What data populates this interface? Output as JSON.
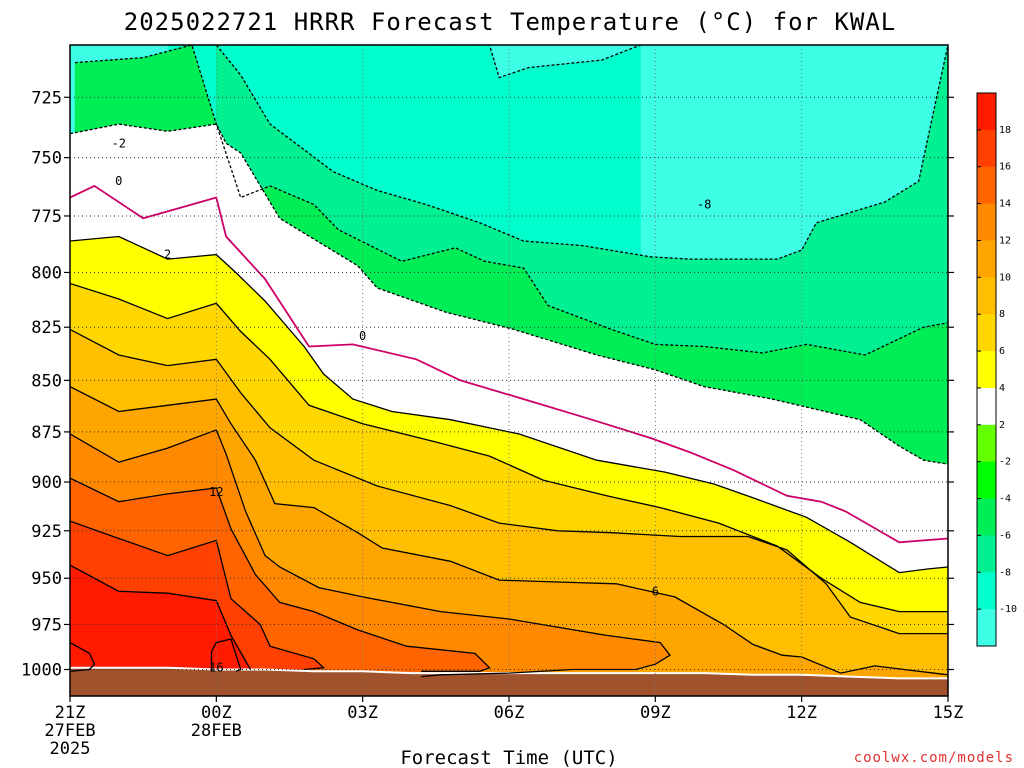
{
  "chart_data": {
    "type": "contour",
    "title": "2025022721 HRRR Forecast Temperature (°C) for KWAL",
    "xlabel": "Forecast Time (UTC)",
    "ylabel": "",
    "x_ticks": [
      {
        "label": "21Z",
        "sub": [
          "27FEB",
          "2025"
        ],
        "hour": 0
      },
      {
        "label": "00Z",
        "sub": [
          "28FEB"
        ],
        "hour": 3
      },
      {
        "label": "03Z",
        "sub": [],
        "hour": 6
      },
      {
        "label": "06Z",
        "sub": [],
        "hour": 9
      },
      {
        "label": "09Z",
        "sub": [],
        "hour": 12
      },
      {
        "label": "12Z",
        "sub": [],
        "hour": 15
      },
      {
        "label": "15Z",
        "sub": [],
        "hour": 18
      }
    ],
    "y_ticks": [
      725,
      750,
      775,
      800,
      825,
      850,
      875,
      900,
      925,
      950,
      975,
      1000
    ],
    "xlim_hours": [
      0,
      18
    ],
    "ylim_hPa": [
      1015,
      704
    ],
    "surface_pressure_hPa": [
      999,
      999,
      999,
      1000,
      1000,
      1001,
      1001,
      1002,
      1002,
      1002,
      1002,
      1002,
      1002,
      1002,
      1003,
      1003,
      1004,
      1005,
      1005
    ],
    "contour_interval": 2,
    "colorbar": {
      "labels": [
        18,
        16,
        14,
        12,
        10,
        8,
        6,
        4,
        2,
        -2,
        -4,
        -6,
        -8,
        -10
      ],
      "colors": [
        "#ff1a00",
        "#ff4000",
        "#ff6400",
        "#ff8a00",
        "#ffa500",
        "#ffbf00",
        "#ffd700",
        "#ffff00",
        "#ffffff",
        "#64ff00",
        "#00ff00",
        "#00ee55",
        "#00f092",
        "#00ffcc",
        "#3cffe6"
      ]
    },
    "isotherms": [
      {
        "value": -10,
        "points": [
          [
            2.0,
            704
          ],
          [
            8.6,
            704
          ],
          [
            8.8,
            717
          ],
          [
            9.4,
            713
          ],
          [
            10.9,
            710
          ],
          [
            11.7,
            704
          ]
        ]
      },
      {
        "value": -8,
        "points": [
          [
            3.0,
            704
          ],
          [
            3.5,
            716
          ],
          [
            4.1,
            736
          ],
          [
            5.4,
            756
          ],
          [
            6.3,
            764
          ],
          [
            7.3,
            770
          ],
          [
            8.4,
            778
          ],
          [
            9.3,
            786
          ],
          [
            10.5,
            788
          ],
          [
            11.9,
            793
          ],
          [
            12.7,
            794
          ],
          [
            14.5,
            794
          ],
          [
            15.0,
            790
          ],
          [
            15.3,
            778
          ],
          [
            16.7,
            769
          ],
          [
            17.4,
            760
          ],
          [
            17.8,
            722
          ],
          [
            18,
            704
          ]
        ]
      },
      {
        "value": -6,
        "points": [
          [
            0.1,
            711
          ],
          [
            1.5,
            709
          ],
          [
            2.5,
            704
          ],
          [
            3.0,
            736
          ],
          [
            3.5,
            767
          ],
          [
            4.1,
            762
          ],
          [
            5.0,
            770
          ],
          [
            5.5,
            781
          ],
          [
            6.8,
            795
          ],
          [
            7.9,
            789
          ],
          [
            8.5,
            795
          ],
          [
            9.3,
            798
          ],
          [
            9.8,
            815
          ],
          [
            11.1,
            826
          ],
          [
            12.0,
            833
          ],
          [
            13.0,
            834
          ],
          [
            14.2,
            837
          ],
          [
            15.1,
            833
          ],
          [
            16.3,
            838
          ],
          [
            17.5,
            825
          ],
          [
            18,
            823
          ]
        ]
      },
      {
        "value": -4,
        "points": [
          [
            0,
            740
          ],
          [
            1.0,
            736
          ],
          [
            2.0,
            739
          ],
          [
            3.0,
            736
          ],
          [
            3.2,
            744
          ],
          [
            3.5,
            748
          ],
          [
            4.3,
            776
          ],
          [
            5.9,
            797
          ],
          [
            6.3,
            807
          ],
          [
            7.7,
            818
          ],
          [
            9.1,
            826
          ],
          [
            10.8,
            838
          ],
          [
            12.0,
            845
          ],
          [
            13.0,
            853
          ],
          [
            14.4,
            859
          ],
          [
            15.3,
            864
          ],
          [
            16.2,
            869
          ],
          [
            17.0,
            882
          ],
          [
            17.5,
            889
          ],
          [
            18,
            891
          ]
        ]
      },
      {
        "value": 0,
        "points": [
          [
            0,
            767
          ],
          [
            0.5,
            762
          ],
          [
            1.5,
            776
          ],
          [
            2.5,
            770
          ],
          [
            3.0,
            767
          ],
          [
            3.2,
            784
          ],
          [
            4.0,
            803
          ],
          [
            4.9,
            834
          ],
          [
            5.8,
            833
          ],
          [
            7.1,
            840
          ],
          [
            8.0,
            850
          ],
          [
            9.3,
            859
          ],
          [
            10.7,
            869
          ],
          [
            11.9,
            878
          ],
          [
            12.7,
            885
          ],
          [
            13.6,
            894
          ],
          [
            14.7,
            907
          ],
          [
            15.4,
            910
          ],
          [
            15.9,
            915
          ],
          [
            17.0,
            931
          ],
          [
            18,
            929
          ]
        ]
      },
      {
        "value": 2,
        "points": [
          [
            0,
            786
          ],
          [
            1.0,
            784
          ],
          [
            2.0,
            794
          ],
          [
            3.0,
            792
          ],
          [
            3.4,
            800
          ],
          [
            4.0,
            813
          ],
          [
            4.8,
            834
          ],
          [
            5.2,
            847
          ],
          [
            5.8,
            859
          ],
          [
            6.6,
            865
          ],
          [
            7.8,
            869
          ],
          [
            9.2,
            876
          ],
          [
            10.8,
            889
          ],
          [
            12.2,
            895
          ],
          [
            13.2,
            901
          ],
          [
            14.0,
            908
          ],
          [
            15.1,
            918
          ],
          [
            16.0,
            931
          ],
          [
            17.0,
            947
          ],
          [
            17.6,
            945
          ],
          [
            18,
            944
          ]
        ]
      },
      {
        "value": 4,
        "points": [
          [
            0,
            805
          ],
          [
            1.0,
            812
          ],
          [
            2.0,
            821
          ],
          [
            3.0,
            814
          ],
          [
            3.5,
            827
          ],
          [
            4.1,
            840
          ],
          [
            4.9,
            862
          ],
          [
            6.0,
            871
          ],
          [
            7.5,
            880
          ],
          [
            8.6,
            887
          ],
          [
            9.7,
            899
          ],
          [
            11.0,
            907
          ],
          [
            12.1,
            913
          ],
          [
            13.3,
            921
          ],
          [
            14.5,
            933
          ],
          [
            15.4,
            950
          ],
          [
            16.2,
            963
          ],
          [
            17.0,
            968
          ],
          [
            18,
            968
          ]
        ]
      },
      {
        "value": 6,
        "points": [
          [
            0,
            826
          ],
          [
            1.0,
            838
          ],
          [
            2.0,
            843
          ],
          [
            3.0,
            840
          ],
          [
            3.5,
            856
          ],
          [
            4.1,
            873
          ],
          [
            5.0,
            889
          ],
          [
            6.3,
            902
          ],
          [
            7.8,
            912
          ],
          [
            8.8,
            921
          ],
          [
            10.0,
            925
          ],
          [
            11.1,
            926
          ],
          [
            12.5,
            928
          ],
          [
            13.9,
            928
          ],
          [
            14.7,
            935
          ],
          [
            15.5,
            953
          ],
          [
            16.0,
            971
          ],
          [
            17.0,
            980
          ],
          [
            18,
            980
          ]
        ]
      },
      {
        "value": 8,
        "points": [
          [
            0,
            853
          ],
          [
            1.0,
            865
          ],
          [
            2.0,
            862
          ],
          [
            3.0,
            859
          ],
          [
            3.3,
            871
          ],
          [
            3.8,
            889
          ],
          [
            4.2,
            911
          ],
          [
            5.0,
            913
          ],
          [
            5.9,
            926
          ],
          [
            6.4,
            934
          ],
          [
            7.8,
            941
          ],
          [
            8.8,
            951
          ],
          [
            10.0,
            952
          ],
          [
            11.2,
            953
          ],
          [
            12.4,
            960
          ],
          [
            13.4,
            975
          ],
          [
            14.0,
            986
          ],
          [
            14.6,
            992
          ],
          [
            15.0,
            993
          ],
          [
            15.8,
            1002
          ],
          [
            16.5,
            998
          ],
          [
            17.1,
            1000
          ],
          [
            18,
            1003
          ]
        ]
      },
      {
        "value": 10,
        "points": [
          [
            0,
            876
          ],
          [
            1.0,
            890
          ],
          [
            2.0,
            883
          ],
          [
            3.0,
            874
          ],
          [
            3.2,
            886
          ],
          [
            3.6,
            915
          ],
          [
            4.0,
            938
          ],
          [
            4.3,
            944
          ],
          [
            5.1,
            955
          ],
          [
            6.0,
            960
          ],
          [
            7.6,
            968
          ],
          [
            9.0,
            972
          ],
          [
            11.0,
            981
          ],
          [
            12.1,
            985
          ],
          [
            12.3,
            992
          ],
          [
            12.0,
            997
          ],
          [
            11.6,
            1000
          ],
          [
            10.3,
            1000
          ],
          [
            9.0,
            1002
          ],
          [
            7.6,
            1003
          ],
          [
            7.2,
            1004
          ]
        ]
      },
      {
        "value": 12,
        "points": [
          [
            0,
            898
          ],
          [
            1.0,
            910
          ],
          [
            2.0,
            906
          ],
          [
            3.0,
            903
          ],
          [
            3.3,
            924
          ],
          [
            3.8,
            948
          ],
          [
            4.3,
            963
          ],
          [
            5.0,
            968
          ],
          [
            5.9,
            978
          ],
          [
            6.9,
            987
          ],
          [
            8.3,
            991
          ],
          [
            8.6,
            999
          ],
          [
            8.4,
            1001
          ],
          [
            7.2,
            1001
          ]
        ]
      },
      {
        "value": 14,
        "points": [
          [
            0,
            920
          ],
          [
            1.0,
            929
          ],
          [
            2.0,
            938
          ],
          [
            3.0,
            930
          ],
          [
            3.3,
            961
          ],
          [
            3.9,
            975
          ],
          [
            4.1,
            987
          ],
          [
            5.0,
            994
          ],
          [
            5.2,
            999
          ],
          [
            4.8,
            1000
          ]
        ]
      },
      {
        "value": 16,
        "points": [
          [
            0,
            943
          ],
          [
            1.0,
            957
          ],
          [
            2.0,
            958
          ],
          [
            3.0,
            962
          ],
          [
            3.3,
            981
          ],
          [
            3.7,
            1000
          ]
        ]
      },
      {
        "value": 16,
        "points": [
          [
            2.9,
            1001
          ],
          [
            2.9,
            990
          ],
          [
            3.0,
            985
          ],
          [
            3.3,
            983
          ],
          [
            3.5,
            1000
          ],
          [
            3.4,
            1001
          ]
        ]
      },
      {
        "value": 18,
        "points": [
          [
            0,
            985
          ],
          [
            0.4,
            991
          ],
          [
            0.5,
            997
          ],
          [
            0.4,
            1000
          ],
          [
            0,
            1001
          ]
        ]
      }
    ],
    "contour_labels": [
      {
        "text": "-2",
        "x": 1.0,
        "y": 744,
        "kind": "neg"
      },
      {
        "text": "0",
        "x": 1.0,
        "y": 760,
        "kind": "zero"
      },
      {
        "text": "2",
        "x": 2.0,
        "y": 792,
        "kind": "pos"
      },
      {
        "text": "0",
        "x": 6.0,
        "y": 829,
        "kind": "zero"
      },
      {
        "text": "-8",
        "x": 13.0,
        "y": 770,
        "kind": "neg"
      },
      {
        "text": "12",
        "x": 3.0,
        "y": 905,
        "kind": "pos"
      },
      {
        "text": "6",
        "x": 12.0,
        "y": 957,
        "kind": "pos"
      },
      {
        "text": "16",
        "x": 3.0,
        "y": 999,
        "kind": "pos"
      }
    ],
    "colors": {
      "ground": "#a0522d",
      "freezing_line": "#cc0066",
      "grid": "#555555"
    }
  },
  "watermark": "coolwx.com/models"
}
